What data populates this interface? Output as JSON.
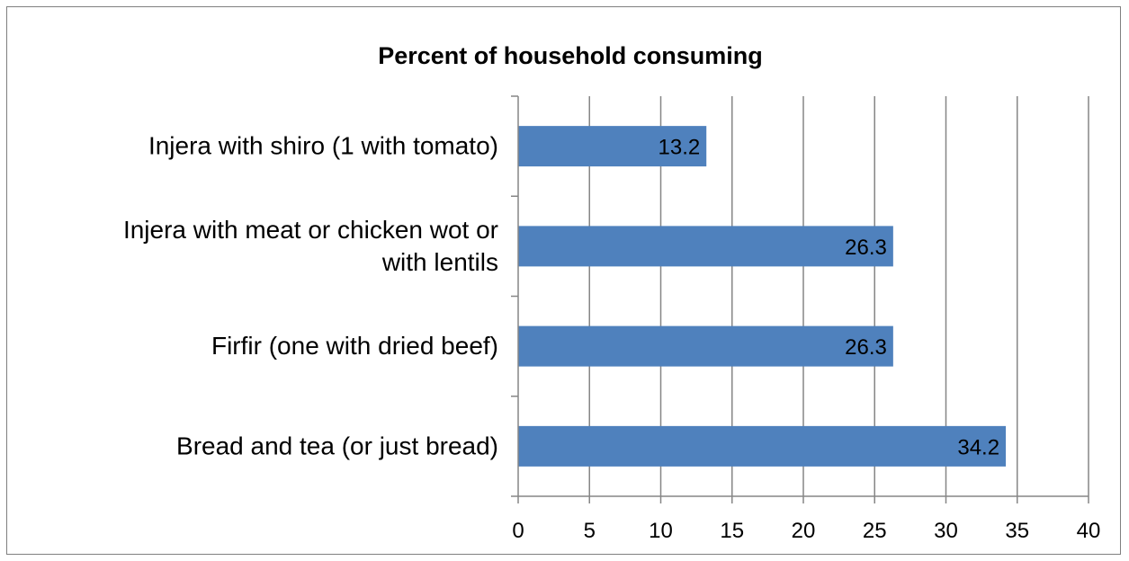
{
  "chart_data": {
    "type": "bar",
    "orientation": "horizontal",
    "title": "Percent of household consuming",
    "categories": [
      "Injera with shiro (1 with tomato)",
      "Injera with meat or chicken wot or with lentils",
      "Firfir (one with dried beef)",
      "Bread and tea (or just bread)"
    ],
    "category_lines": [
      [
        "Injera with shiro (1 with tomato)"
      ],
      [
        "Injera with meat or chicken wot or",
        "with lentils"
      ],
      [
        "Firfir (one with dried beef)"
      ],
      [
        "Bread and tea (or just bread)"
      ]
    ],
    "values": [
      13.2,
      26.3,
      26.3,
      34.2
    ],
    "data_labels": [
      "13.2",
      "26.3",
      "26.3",
      "34.2"
    ],
    "xlim": [
      0,
      40
    ],
    "x_ticks": [
      0,
      5,
      10,
      15,
      20,
      25,
      30,
      35,
      40
    ],
    "grid": "vertical",
    "legend": "none",
    "bar_color": "#4f81bd",
    "xlabel": "",
    "ylabel": ""
  }
}
